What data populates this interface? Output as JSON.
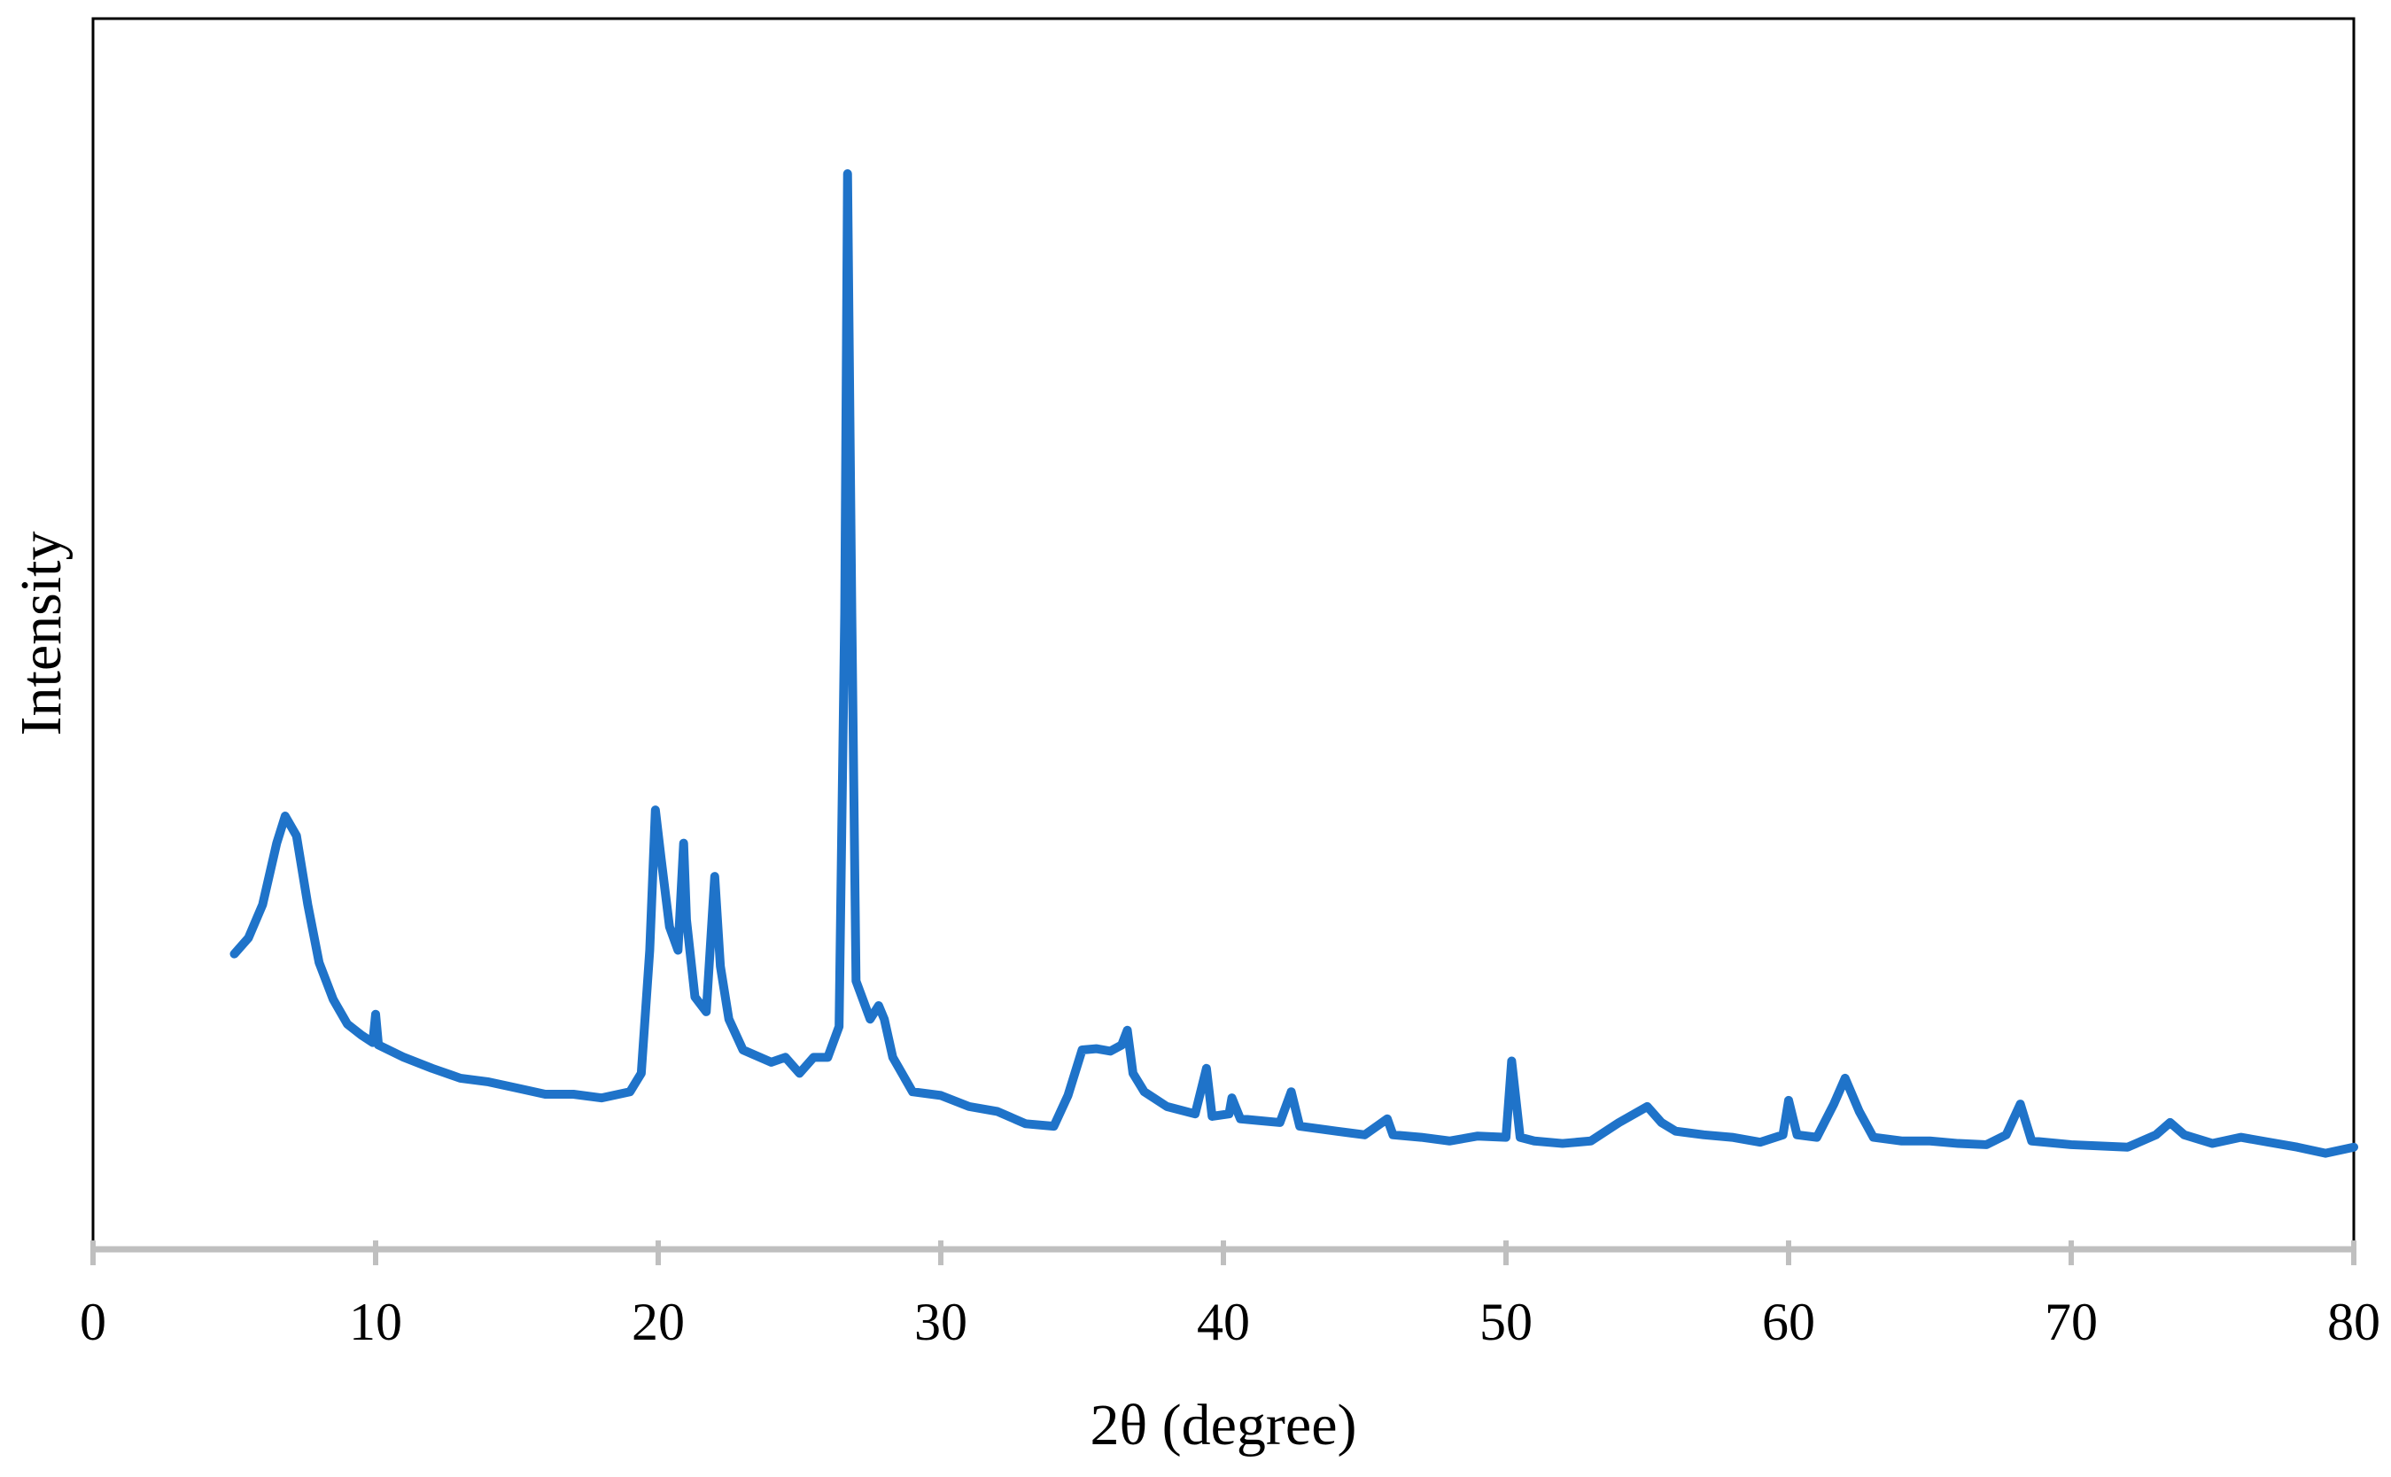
{
  "chart_data": {
    "type": "line",
    "x_label": "2θ (degree)",
    "y_label": "Intensity",
    "x": [
      5.0,
      5.5,
      6.0,
      6.5,
      6.8,
      7.2,
      7.6,
      8.0,
      8.5,
      9.0,
      9.5,
      9.9,
      10.0,
      10.1,
      11,
      12,
      13,
      14,
      15,
      16,
      17,
      18,
      19,
      19.4,
      19.7,
      19.9,
      20.1,
      20.4,
      20.7,
      20.9,
      21.0,
      21.3,
      21.7,
      22.0,
      22.2,
      22.5,
      23,
      24,
      24.5,
      25,
      25.5,
      26,
      26.4,
      26.6,
      26.7,
      26.85,
      27.0,
      27.5,
      27.8,
      28.0,
      28.3,
      29,
      30,
      31,
      32,
      33,
      34,
      34.5,
      35,
      35.5,
      36,
      36.4,
      36.6,
      36.8,
      37.2,
      38,
      39,
      39.4,
      39.6,
      40.2,
      40.3,
      40.6,
      42,
      42.4,
      42.7,
      44,
      45,
      45.8,
      46,
      47,
      48,
      49,
      50,
      50.2,
      50.5,
      51,
      52,
      53,
      54,
      55,
      55.5,
      56,
      57,
      58,
      59,
      59.8,
      60.0,
      60.3,
      61,
      61.6,
      62,
      62.5,
      63,
      64,
      65,
      66,
      67,
      67.7,
      68.2,
      68.6,
      70,
      72,
      73,
      73.5,
      74,
      75,
      76,
      77,
      78,
      79,
      80
    ],
    "series": [
      {
        "color": "#1f73c9",
        "values": [
          24.0,
          25.3,
          28.0,
          33.0,
          35.2,
          33.6,
          28.0,
          23.3,
          20.3,
          18.3,
          17.4,
          16.8,
          19.1,
          16.6,
          15.6,
          14.7,
          13.9,
          13.6,
          13.1,
          12.6,
          12.6,
          12.3,
          12.8,
          14.3,
          24.3,
          35.7,
          31.8,
          26.2,
          24.3,
          33.0,
          26.8,
          20.5,
          19.3,
          30.3,
          23.0,
          18.7,
          16.2,
          15.2,
          15.6,
          14.3,
          15.6,
          15.6,
          18.1,
          51.7,
          87.4,
          51.7,
          21.8,
          18.7,
          19.8,
          18.7,
          15.6,
          12.8,
          12.5,
          11.6,
          11.2,
          10.2,
          10.0,
          12.5,
          16.2,
          16.3,
          16.1,
          16.6,
          17.8,
          14.3,
          12.8,
          11.6,
          11.0,
          14.7,
          10.8,
          11.0,
          12.3,
          10.6,
          10.3,
          12.8,
          10.0,
          9.6,
          9.3,
          10.6,
          9.3,
          9.1,
          8.8,
          9.2,
          9.1,
          15.3,
          9.1,
          8.8,
          8.6,
          8.8,
          10.3,
          11.6,
          10.3,
          9.6,
          9.3,
          9.1,
          8.7,
          9.3,
          12.1,
          9.3,
          9.1,
          11.8,
          13.9,
          11.2,
          9.1,
          8.8,
          8.8,
          8.6,
          8.5,
          9.3,
          11.8,
          8.8,
          8.5,
          8.3,
          9.3,
          10.3,
          9.3,
          8.6,
          9.1,
          8.7,
          8.3,
          7.8,
          8.3
        ]
      }
    ],
    "xlim": [
      0,
      80
    ],
    "xticks": [
      0,
      10,
      20,
      30,
      40,
      50,
      60,
      70,
      80
    ],
    "ylim": [
      0,
      100
    ]
  }
}
